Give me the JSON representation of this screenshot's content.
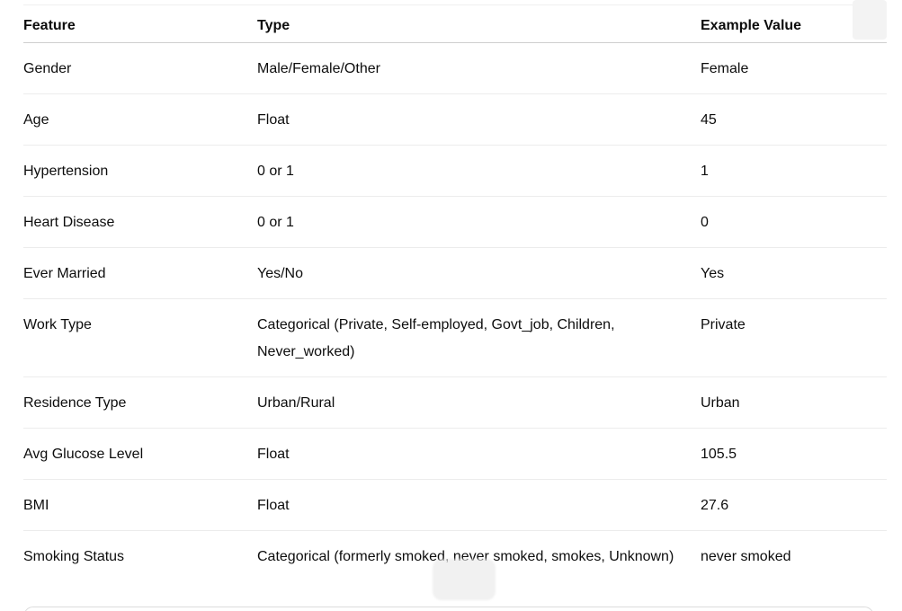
{
  "table": {
    "headers": {
      "feature": "Feature",
      "type": "Type",
      "example": "Example Value"
    },
    "rows": [
      {
        "feature": "Gender",
        "type": "Male/Female/Other",
        "example": "Female"
      },
      {
        "feature": "Age",
        "type": "Float",
        "example": "45"
      },
      {
        "feature": "Hypertension",
        "type": "0 or 1",
        "example": "1"
      },
      {
        "feature": "Heart Disease",
        "type": "0 or 1",
        "example": "0"
      },
      {
        "feature": "Ever Married",
        "type": "Yes/No",
        "example": "Yes"
      },
      {
        "feature": "Work Type",
        "type": "Categorical (Private, Self-employed, Govt_job, Children, Never_worked)",
        "example": "Private"
      },
      {
        "feature": "Residence Type",
        "type": "Urban/Rural",
        "example": "Urban"
      },
      {
        "feature": "Avg Glucose Level",
        "type": "Float",
        "example": "105.5"
      },
      {
        "feature": "BMI",
        "type": "Float",
        "example": "27.6"
      },
      {
        "feature": "Smoking Status",
        "type": "Categorical (formerly smoked, never smoked, smokes, Unknown)",
        "example": "never smoked"
      }
    ]
  }
}
